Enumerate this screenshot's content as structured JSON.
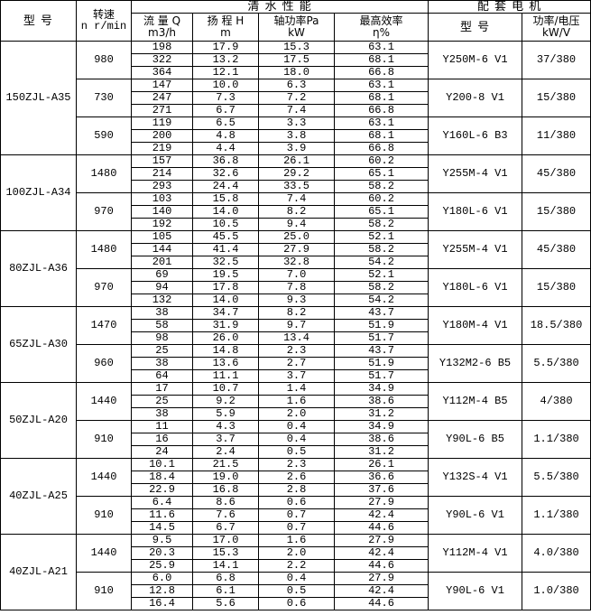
{
  "header": {
    "model": "型 号",
    "speed": [
      "转速",
      "n r/min"
    ],
    "clean_water": "清 水 性 能",
    "motor": "配 套 电 机",
    "flow": [
      "流 量 Q",
      "m3/h"
    ],
    "head": [
      "扬 程 H",
      "m"
    ],
    "shaft_power": [
      "轴功率Pa",
      "kW"
    ],
    "efficiency": [
      "最高效率",
      "η%"
    ],
    "motor_model": "型 号",
    "power_voltage": [
      "功率/电压",
      "kW/V"
    ]
  },
  "pumps": [
    {
      "model": "150ZJL-A35",
      "speeds": [
        {
          "speed": "980",
          "motor": "Y250M-6 V1",
          "power": "37/380",
          "rows": [
            [
              "198",
              "17.9",
              "15.3",
              "63.1"
            ],
            [
              "322",
              "13.2",
              "17.5",
              "68.1"
            ],
            [
              "364",
              "12.1",
              "18.0",
              "66.8"
            ]
          ]
        },
        {
          "speed": "730",
          "motor": "Y200-8 V1",
          "power": "15/380",
          "rows": [
            [
              "147",
              "10.0",
              "6.3",
              "63.1"
            ],
            [
              "247",
              "7.3",
              "7.2",
              "68.1"
            ],
            [
              "271",
              "6.7",
              "7.4",
              "66.8"
            ]
          ]
        },
        {
          "speed": "590",
          "motor": "Y160L-6 B3",
          "power": "11/380",
          "rows": [
            [
              "119",
              "6.5",
              "3.3",
              "63.1"
            ],
            [
              "200",
              "4.8",
              "3.8",
              "68.1"
            ],
            [
              "219",
              "4.4",
              "3.9",
              "66.8"
            ]
          ]
        }
      ]
    },
    {
      "model": "100ZJL-A34",
      "speeds": [
        {
          "speed": "1480",
          "motor": "Y255M-4 V1",
          "power": "45/380",
          "rows": [
            [
              "157",
              "36.8",
              "26.1",
              "60.2"
            ],
            [
              "214",
              "32.6",
              "29.2",
              "65.1"
            ],
            [
              "293",
              "24.4",
              "33.5",
              "58.2"
            ]
          ]
        },
        {
          "speed": "970",
          "motor": "Y180L-6 V1",
          "power": "15/380",
          "rows": [
            [
              "103",
              "15.8",
              "7.4",
              "60.2"
            ],
            [
              "140",
              "14.0",
              "8.2",
              "65.1"
            ],
            [
              "192",
              "10.5",
              "9.4",
              "58.2"
            ]
          ]
        }
      ]
    },
    {
      "model": "80ZJL-A36",
      "speeds": [
        {
          "speed": "1480",
          "motor": "Y255M-4 V1",
          "power": "45/380",
          "rows": [
            [
              "105",
              "45.5",
              "25.0",
              "52.1"
            ],
            [
              "144",
              "41.4",
              "27.9",
              "58.2"
            ],
            [
              "201",
              "32.5",
              "32.8",
              "54.2"
            ]
          ]
        },
        {
          "speed": "970",
          "motor": "Y180L-6 V1",
          "power": "15/380",
          "rows": [
            [
              "69",
              "19.5",
              "7.0",
              "52.1"
            ],
            [
              "94",
              "17.8",
              "7.8",
              "58.2"
            ],
            [
              "132",
              "14.0",
              "9.3",
              "54.2"
            ]
          ]
        }
      ]
    },
    {
      "model": "65ZJL-A30",
      "speeds": [
        {
          "speed": "1470",
          "motor": "Y180M-4 V1",
          "power": "18.5/380",
          "rows": [
            [
              "38",
              "34.7",
              "8.2",
              "43.7"
            ],
            [
              "58",
              "31.9",
              "9.7",
              "51.9"
            ],
            [
              "98",
              "26.0",
              "13.4",
              "51.7"
            ]
          ]
        },
        {
          "speed": "960",
          "motor": "Y132M2-6 B5",
          "power": "5.5/380",
          "rows": [
            [
              "25",
              "14.8",
              "2.3",
              "43.7"
            ],
            [
              "38",
              "13.6",
              "2.7",
              "51.9"
            ],
            [
              "64",
              "11.1",
              "3.7",
              "51.7"
            ]
          ]
        }
      ]
    },
    {
      "model": "50ZJL-A20",
      "speeds": [
        {
          "speed": "1440",
          "motor": "Y112M-4 B5",
          "power": "4/380",
          "rows": [
            [
              "17",
              "10.7",
              "1.4",
              "34.9"
            ],
            [
              "25",
              "9.2",
              "1.6",
              "38.6"
            ],
            [
              "38",
              "5.9",
              "2.0",
              "31.2"
            ]
          ]
        },
        {
          "speed": "910",
          "motor": "Y90L-6 B5",
          "power": "1.1/380",
          "rows": [
            [
              "11",
              "4.3",
              "0.4",
              "34.9"
            ],
            [
              "16",
              "3.7",
              "0.4",
              "38.6"
            ],
            [
              "24",
              "2.4",
              "0.5",
              "31.2"
            ]
          ]
        }
      ]
    },
    {
      "model": "40ZJL-A25",
      "speeds": [
        {
          "speed": "1440",
          "motor": "Y132S-4 V1",
          "power": "5.5/380",
          "rows": [
            [
              "10.1",
              "21.5",
              "2.3",
              "26.1"
            ],
            [
              "18.4",
              "19.0",
              "2.6",
              "36.6"
            ],
            [
              "22.9",
              "16.8",
              "2.8",
              "37.6"
            ]
          ]
        },
        {
          "speed": "910",
          "motor": "Y90L-6 V1",
          "power": "1.1/380",
          "rows": [
            [
              "6.4",
              "8.6",
              "0.6",
              "27.9"
            ],
            [
              "11.6",
              "7.6",
              "0.7",
              "42.4"
            ],
            [
              "14.5",
              "6.7",
              "0.7",
              "44.6"
            ]
          ]
        }
      ]
    },
    {
      "model": "40ZJL-A21",
      "speeds": [
        {
          "speed": "1440",
          "motor": "Y112M-4 V1",
          "power": "4.0/380",
          "rows": [
            [
              "9.5",
              "17.0",
              "1.6",
              "27.9"
            ],
            [
              "20.3",
              "15.3",
              "2.0",
              "42.4"
            ],
            [
              "25.9",
              "14.1",
              "2.2",
              "44.6"
            ]
          ]
        },
        {
          "speed": "910",
          "motor": "Y90L-6 V1",
          "power": "1.0/380",
          "rows": [
            [
              "6.0",
              "6.8",
              "0.4",
              "27.9"
            ],
            [
              "12.8",
              "6.1",
              "0.5",
              "42.4"
            ],
            [
              "16.4",
              "5.6",
              "0.6",
              "44.6"
            ]
          ]
        }
      ]
    }
  ]
}
